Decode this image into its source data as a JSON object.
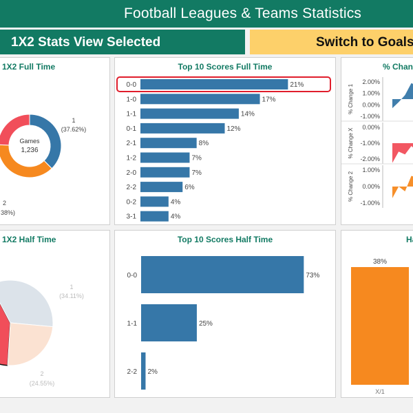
{
  "header": {
    "title": "Football Leagues & Teams Statistics"
  },
  "buttons": {
    "selected_label": "1X2 Stats View Selected",
    "switch_label": "Switch to Goals"
  },
  "panels": {
    "ft_donut_title": "1X2 Full Time",
    "ft_bars_title": "Top 10 Scores Full Time",
    "pct_change_title": "% Chang",
    "ht_pie_title": "1X2 Half Time",
    "ht_bars_title": "Top 10 Scores Half Time",
    "ht_right_title": "Ha"
  },
  "colors": {
    "brand": "#127a63",
    "accent": "#fdd06a",
    "blue": "#3677a8",
    "orange": "#f6891f",
    "red": "#f14e5a",
    "highlight": "#e01d2b"
  },
  "chart_data": [
    {
      "type": "pie",
      "variant": "donut",
      "title": "1X2 Full Time",
      "center_label": "Games",
      "center_value": "1,236",
      "slices": [
        {
          "name": "1",
          "value": 37.62,
          "color": "#3677a8",
          "label": "1",
          "value_label": "(37.62%)"
        },
        {
          "name": "2",
          "value": 38,
          "color": "#f6891f",
          "label": "2",
          "value_label": "38%)"
        },
        {
          "name": "X",
          "value": 24.38,
          "color": "#f14e5a",
          "label": "",
          "value_label": ""
        }
      ]
    },
    {
      "type": "bar",
      "orientation": "horizontal",
      "title": "Top 10 Scores Full Time",
      "categories": [
        "0-0",
        "1-0",
        "1-1",
        "0-1",
        "2-1",
        "1-2",
        "2-0",
        "2-2",
        "0-2",
        "3-1"
      ],
      "values": [
        21,
        17,
        14,
        12,
        8,
        7,
        7,
        6,
        4,
        4
      ],
      "value_labels": [
        "21%",
        "17%",
        "14%",
        "12%",
        "8%",
        "7%",
        "7%",
        "6%",
        "4%",
        "4%"
      ],
      "highlighted": "0-0",
      "xlim": [
        0,
        24
      ]
    },
    {
      "type": "area",
      "title": "% Chang",
      "panels": [
        {
          "ylabel": "% Change 1",
          "ticks": [
            "2.00%",
            "1.00%",
            "0.00%",
            "-1.00%"
          ],
          "color": "#3677a8",
          "values": [
            -0.9,
            -0.3,
            0.4,
            1.6,
            1.3,
            1.7
          ]
        },
        {
          "ylabel": "% Change X",
          "ticks": [
            "0.00%",
            "-1.00%",
            "-2.00%"
          ],
          "color": "#f14e5a",
          "values": [
            -2.1,
            -0.9,
            -1.2,
            -0.3,
            -0.9,
            -0.2
          ]
        },
        {
          "ylabel": "% Change 2",
          "ticks": [
            "1.00%",
            "0.00%",
            "-1.00%"
          ],
          "color": "#f6891f",
          "values": [
            -1.2,
            0.0,
            -0.5,
            1.1,
            0.9,
            1.4
          ]
        }
      ]
    },
    {
      "type": "pie",
      "title": "1X2 Half Time",
      "slices": [
        {
          "name": "X",
          "value": 41.34,
          "color": "#f14e5a",
          "label": "",
          "value_label": ""
        },
        {
          "name": "1",
          "value": 34.11,
          "color": "#dce3ea",
          "label": "1",
          "value_label": "(34.11%)"
        },
        {
          "name": "2",
          "value": 24.55,
          "color": "#fbe2d2",
          "label": "2",
          "value_label": "(24.55%)"
        }
      ]
    },
    {
      "type": "bar",
      "orientation": "horizontal",
      "title": "Top 10 Scores Half Time",
      "categories": [
        "0-0",
        "1-1",
        "2-2"
      ],
      "values": [
        73,
        25,
        2
      ],
      "value_labels": [
        "73%",
        "25%",
        "2%"
      ],
      "xlim": [
        0,
        80
      ]
    },
    {
      "type": "bar",
      "title": "Ha",
      "categories": [
        "X/1"
      ],
      "values": [
        38
      ],
      "value_labels": [
        "38%"
      ],
      "ylim": [
        0,
        42
      ]
    }
  ]
}
